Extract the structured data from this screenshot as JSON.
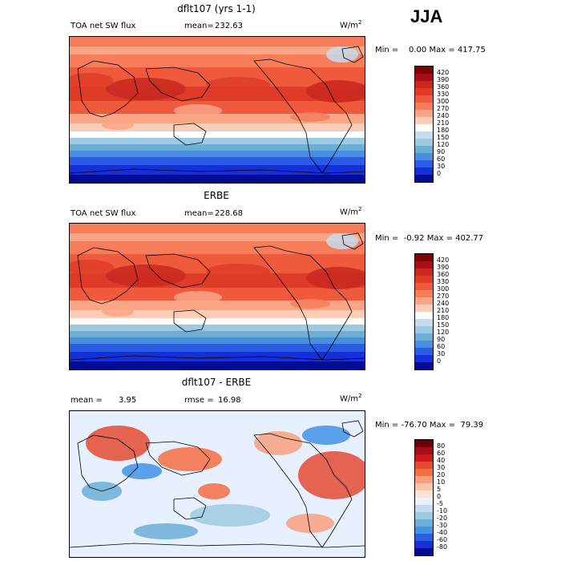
{
  "season": "JJA",
  "chart_data": [
    {
      "type": "heatmap",
      "title": "dflt107 (yrs 1-1)",
      "variable": "TOA net SW flux",
      "stat_label": "mean=",
      "stat_value": "232.63",
      "units": "W/m",
      "units_exp": "2",
      "range_text": "Min =    0.00 Max = 417.75",
      "levels": [
        "420",
        "390",
        "360",
        "330",
        "300",
        "270",
        "240",
        "210",
        "180",
        "150",
        "120",
        "90",
        "60",
        "30",
        "0"
      ],
      "colors": [
        "#7f0000",
        "#a50f15",
        "#c8281e",
        "#de3c28",
        "#ef5a3c",
        "#f67c5a",
        "#f9a586",
        "#fccdb6",
        "#ffffff",
        "#c6dbef",
        "#9ecae1",
        "#6baed6",
        "#4a8fdf",
        "#2b5ce6",
        "#1530d8",
        "#000c96"
      ]
    },
    {
      "type": "heatmap",
      "title": "ERBE",
      "variable": "TOA net SW flux",
      "stat_label": "mean=",
      "stat_value": "228.68",
      "units": "W/m",
      "units_exp": "2",
      "range_text": "Min =  -0.92 Max = 402.77",
      "levels": [
        "420",
        "390",
        "360",
        "330",
        "300",
        "270",
        "240",
        "210",
        "180",
        "150",
        "120",
        "90",
        "60",
        "30",
        "0"
      ],
      "colors": [
        "#7f0000",
        "#a50f15",
        "#c8281e",
        "#de3c28",
        "#ef5a3c",
        "#f67c5a",
        "#f9a586",
        "#fccdb6",
        "#ffffff",
        "#c6dbef",
        "#9ecae1",
        "#6baed6",
        "#4a8fdf",
        "#2b5ce6",
        "#1530d8",
        "#000c96"
      ]
    },
    {
      "type": "heatmap",
      "title": "dflt107 - ERBE",
      "mean_label": "mean =",
      "mean_value": "3.95",
      "rmse_label": "rmse =",
      "rmse_value": "16.98",
      "units": "W/m",
      "units_exp": "2",
      "range_text": "Min = -76.70 Max =  79.39",
      "levels": [
        "80",
        "60",
        "40",
        "30",
        "20",
        "10",
        "5",
        "0",
        "-5",
        "-10",
        "-20",
        "-30",
        "-40",
        "-60",
        "-80"
      ],
      "colors": [
        "#67000d",
        "#a50f15",
        "#cb181d",
        "#e34a33",
        "#f46d43",
        "#f8a07e",
        "#fcc5b0",
        "#fde3d6",
        "#e6f0ff",
        "#c6dbef",
        "#9ecae1",
        "#6baed6",
        "#4292e6",
        "#2b5ce6",
        "#1530d8",
        "#000c96"
      ]
    }
  ]
}
